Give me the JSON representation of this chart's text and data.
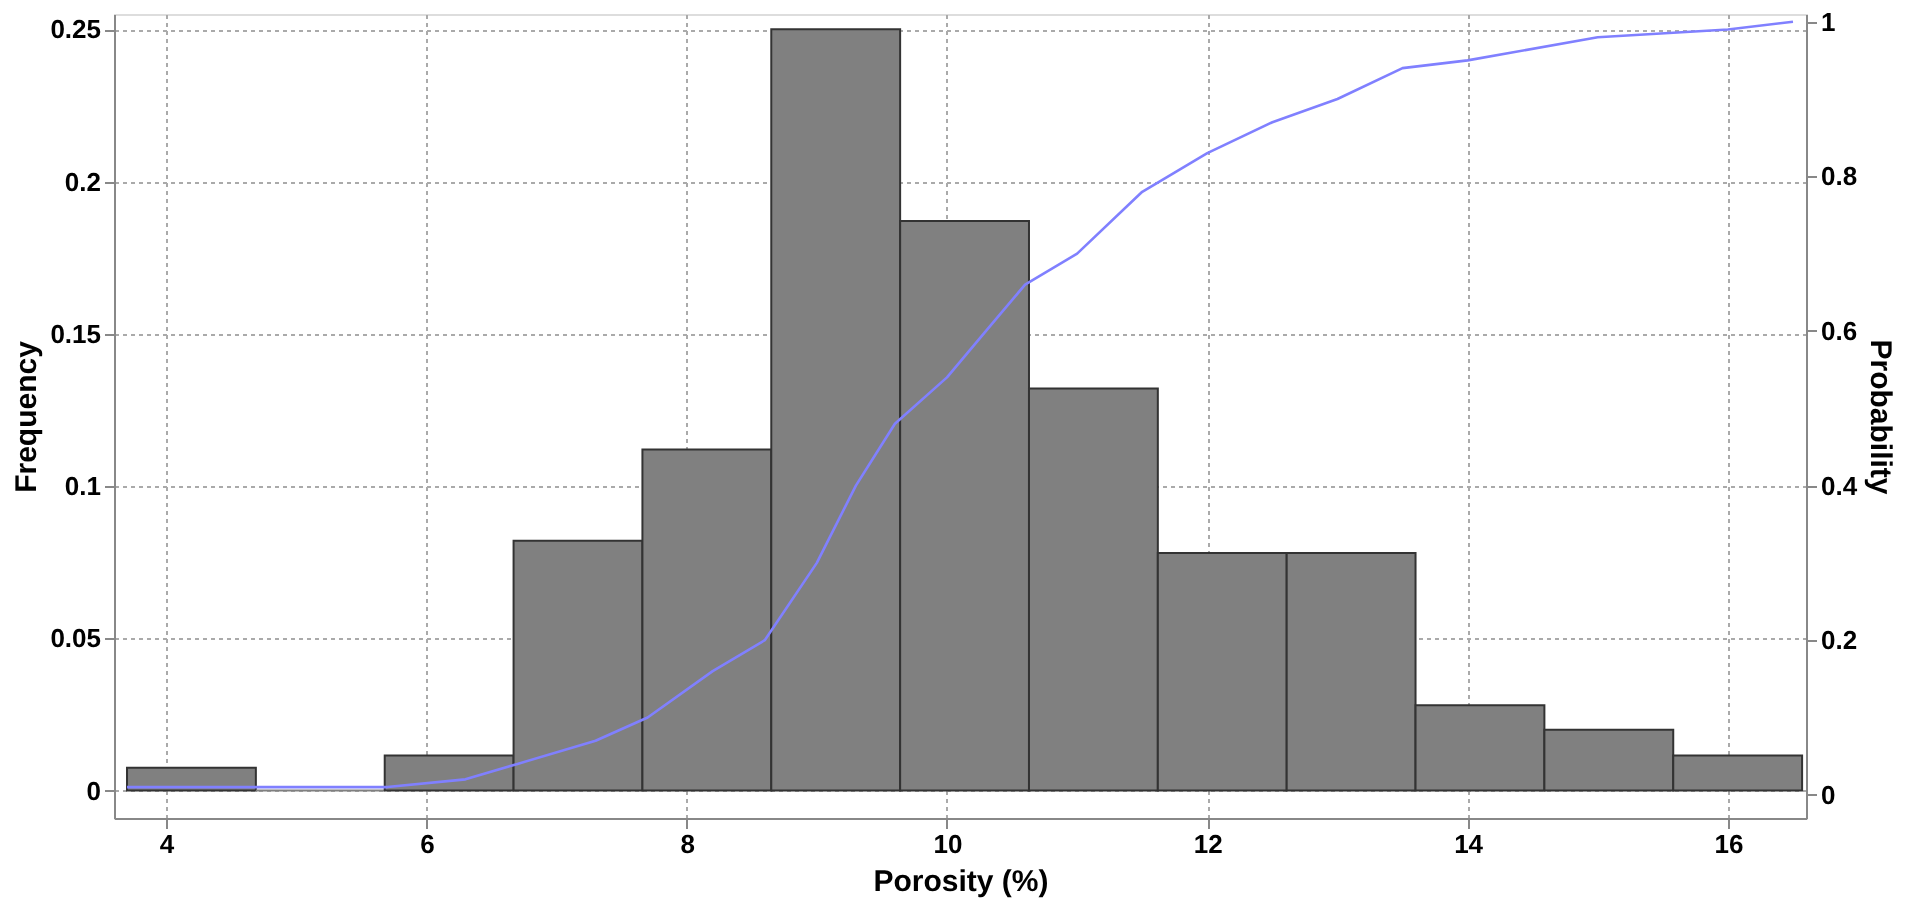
{
  "chart_data": {
    "type": "histogram",
    "xlabel": "Porosity (%)",
    "ylabel": "Frequency",
    "y2label": "Probability",
    "bins": [
      3.7,
      4.69,
      5.68,
      6.67,
      7.66,
      8.65,
      9.64,
      10.63,
      11.62,
      12.61,
      13.6,
      14.59,
      15.58,
      16.57
    ],
    "values": [
      0.0075,
      0,
      0.0115,
      0.082,
      0.112,
      0.25,
      0.187,
      0.132,
      0.078,
      0.078,
      0.028,
      0.02,
      0.0115
    ],
    "color": "#808080",
    "series": [
      {
        "type": "line",
        "axis": "y2",
        "color": "#8080ff",
        "x": [
          3.7,
          5.7,
          6.3,
          6.7,
          7.3,
          7.7,
          8.2,
          8.6,
          9.0,
          9.3,
          9.6,
          10.0,
          10.3,
          10.6,
          11.0,
          11.5,
          12.0,
          12.5,
          13.0,
          13.5,
          14.0,
          15.0,
          16.0,
          16.5
        ],
        "values": [
          0.01,
          0.01,
          0.02,
          0.04,
          0.07,
          0.1,
          0.16,
          0.2,
          0.3,
          0.4,
          0.48,
          0.54,
          0.6,
          0.66,
          0.7,
          0.78,
          0.83,
          0.87,
          0.9,
          0.94,
          0.95,
          0.98,
          0.99,
          1.0
        ]
      }
    ],
    "xlim": [
      3.6,
      16.6
    ],
    "xticks": [
      4,
      6,
      8,
      10,
      12,
      14,
      16
    ],
    "ylim": [
      -0.009,
      0.255
    ],
    "yticks": [
      0,
      0.05,
      0.1,
      0.15,
      0.2,
      0.25
    ],
    "y2lim": [
      -0.03,
      1.01
    ],
    "y2ticks": [
      0,
      0.2,
      0.4,
      0.6,
      0.8,
      1
    ],
    "grid": true
  }
}
